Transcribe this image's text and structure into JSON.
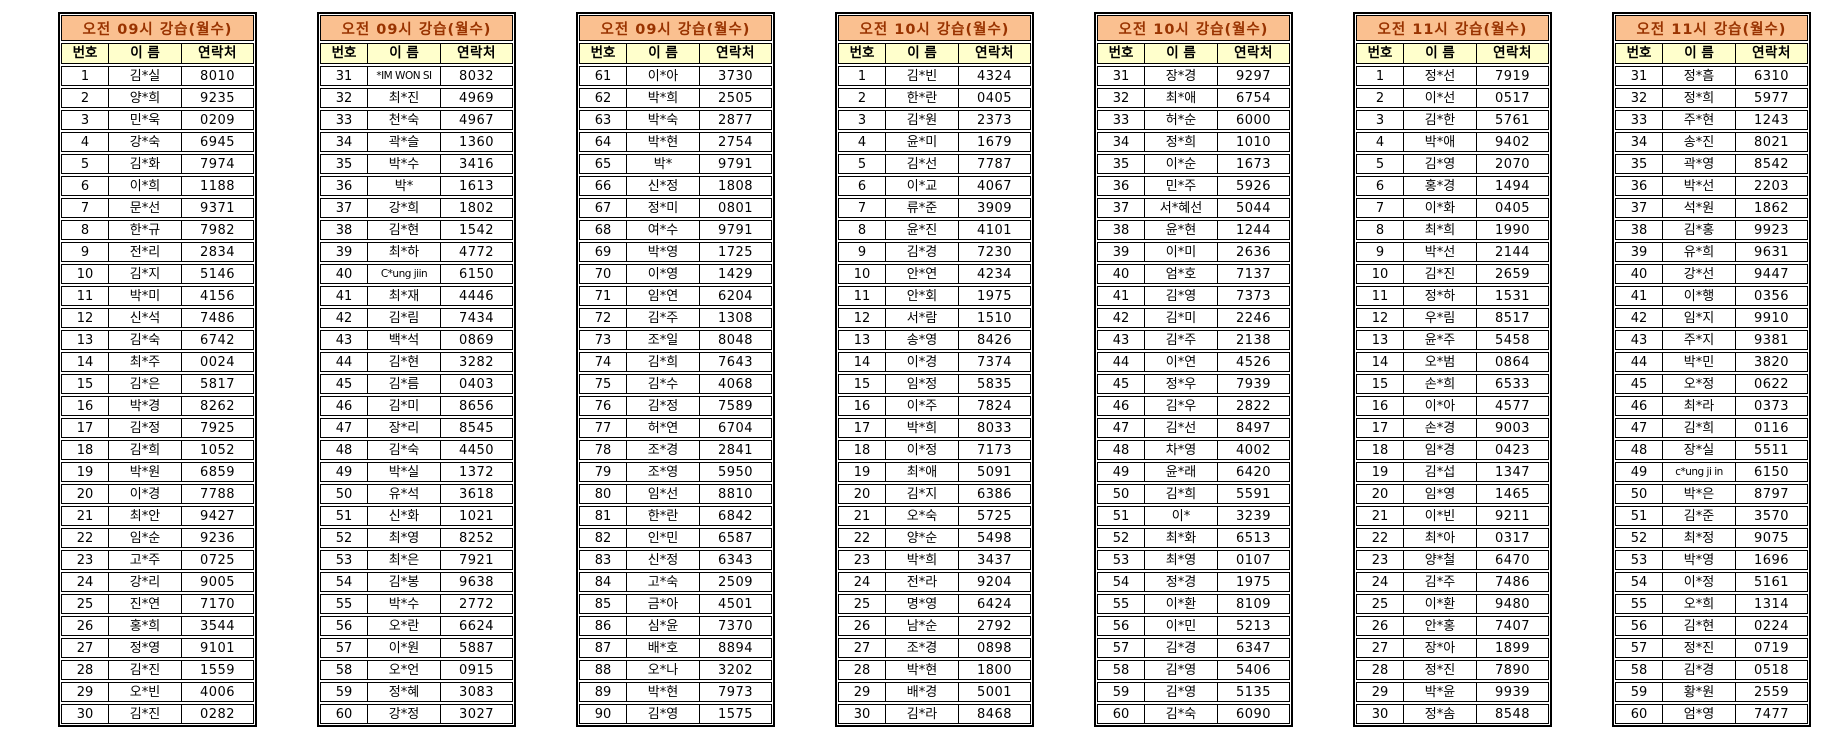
{
  "colors": {
    "title_bg": "#FAC090",
    "title_fg": "#993300",
    "header_bg": "#FFFFCC",
    "border": "#000000",
    "page_bg": "#FFFFFF"
  },
  "columns": [
    "번호",
    "이 름",
    "연락처"
  ],
  "tables": [
    {
      "title": "오전 09시 강습(월수)",
      "rows": [
        [
          "1",
          "김*실",
          "8010"
        ],
        [
          "2",
          "양*희",
          "9235"
        ],
        [
          "3",
          "민*욱",
          "0209"
        ],
        [
          "4",
          "강*숙",
          "6945"
        ],
        [
          "5",
          "김*화",
          "7974"
        ],
        [
          "6",
          "이*희",
          "1188"
        ],
        [
          "7",
          "문*선",
          "9371"
        ],
        [
          "8",
          "한*규",
          "7982"
        ],
        [
          "9",
          "전*리",
          "2834"
        ],
        [
          "10",
          "김*지",
          "5146"
        ],
        [
          "11",
          "박*미",
          "4156"
        ],
        [
          "12",
          "신*석",
          "7486"
        ],
        [
          "13",
          "김*숙",
          "6742"
        ],
        [
          "14",
          "최*주",
          "0024"
        ],
        [
          "15",
          "김*은",
          "5817"
        ],
        [
          "16",
          "박*경",
          "8262"
        ],
        [
          "17",
          "김*정",
          "7925"
        ],
        [
          "18",
          "김*희",
          "1052"
        ],
        [
          "19",
          "박*원",
          "6859"
        ],
        [
          "20",
          "이*경",
          "7788"
        ],
        [
          "21",
          "최*안",
          "9427"
        ],
        [
          "22",
          "임*순",
          "9236"
        ],
        [
          "23",
          "고*주",
          "0725"
        ],
        [
          "24",
          "강*리",
          "9005"
        ],
        [
          "25",
          "진*연",
          "7170"
        ],
        [
          "26",
          "홍*희",
          "3544"
        ],
        [
          "27",
          "정*영",
          "9101"
        ],
        [
          "28",
          "김*진",
          "1559"
        ],
        [
          "29",
          "오*빈",
          "4006"
        ],
        [
          "30",
          "김*진",
          "0282"
        ]
      ]
    },
    {
      "title": "오전 09시 강습(월수)",
      "rows": [
        [
          "31",
          "*IM WON SI",
          "8032"
        ],
        [
          "32",
          "최*진",
          "4969"
        ],
        [
          "33",
          "천*숙",
          "4967"
        ],
        [
          "34",
          "곽*슬",
          "1360"
        ],
        [
          "35",
          "박*수",
          "3416"
        ],
        [
          "36",
          "박*",
          "1613"
        ],
        [
          "37",
          "강*희",
          "1802"
        ],
        [
          "38",
          "김*현",
          "1542"
        ],
        [
          "39",
          "최*하",
          "4772"
        ],
        [
          "40",
          "C*ung jiin",
          "6150"
        ],
        [
          "41",
          "최*재",
          "4446"
        ],
        [
          "42",
          "김*림",
          "7434"
        ],
        [
          "43",
          "백*석",
          "0869"
        ],
        [
          "44",
          "김*현",
          "3282"
        ],
        [
          "45",
          "김*름",
          "0403"
        ],
        [
          "46",
          "김*미",
          "8656"
        ],
        [
          "47",
          "장*리",
          "8545"
        ],
        [
          "48",
          "김*숙",
          "4450"
        ],
        [
          "49",
          "박*실",
          "1372"
        ],
        [
          "50",
          "유*석",
          "3618"
        ],
        [
          "51",
          "신*화",
          "1021"
        ],
        [
          "52",
          "최*영",
          "8252"
        ],
        [
          "53",
          "최*은",
          "7921"
        ],
        [
          "54",
          "김*봉",
          "9638"
        ],
        [
          "55",
          "박*수",
          "2772"
        ],
        [
          "56",
          "오*란",
          "6624"
        ],
        [
          "57",
          "이*원",
          "5887"
        ],
        [
          "58",
          "오*언",
          "0915"
        ],
        [
          "59",
          "정*혜",
          "3083"
        ],
        [
          "60",
          "강*정",
          "3027"
        ]
      ]
    },
    {
      "title": "오전 09시 강습(월수)",
      "rows": [
        [
          "61",
          "이*아",
          "3730"
        ],
        [
          "62",
          "박*희",
          "2505"
        ],
        [
          "63",
          "박*숙",
          "2877"
        ],
        [
          "64",
          "박*현",
          "2754"
        ],
        [
          "65",
          "박*",
          "9791"
        ],
        [
          "66",
          "신*정",
          "1808"
        ],
        [
          "67",
          "정*미",
          "0801"
        ],
        [
          "68",
          "여*수",
          "9791"
        ],
        [
          "69",
          "박*영",
          "1725"
        ],
        [
          "70",
          "이*영",
          "1429"
        ],
        [
          "71",
          "임*연",
          "6204"
        ],
        [
          "72",
          "김*주",
          "1308"
        ],
        [
          "73",
          "조*일",
          "8048"
        ],
        [
          "74",
          "김*희",
          "7643"
        ],
        [
          "75",
          "김*수",
          "4068"
        ],
        [
          "76",
          "김*정",
          "7589"
        ],
        [
          "77",
          "허*연",
          "6704"
        ],
        [
          "78",
          "조*경",
          "2841"
        ],
        [
          "79",
          "조*영",
          "5950"
        ],
        [
          "80",
          "임*선",
          "8810"
        ],
        [
          "81",
          "한*란",
          "6842"
        ],
        [
          "82",
          "인*민",
          "6587"
        ],
        [
          "83",
          "신*정",
          "6343"
        ],
        [
          "84",
          "고*숙",
          "2509"
        ],
        [
          "85",
          "금*아",
          "4501"
        ],
        [
          "86",
          "심*윤",
          "7370"
        ],
        [
          "87",
          "배*호",
          "8894"
        ],
        [
          "88",
          "오*나",
          "3202"
        ],
        [
          "89",
          "박*현",
          "7973"
        ],
        [
          "90",
          "김*영",
          "1575"
        ]
      ]
    },
    {
      "title": "오전 10시 강습(월수)",
      "rows": [
        [
          "1",
          "김*빈",
          "4324"
        ],
        [
          "2",
          "한*란",
          "0405"
        ],
        [
          "3",
          "김*원",
          "2373"
        ],
        [
          "4",
          "윤*미",
          "1679"
        ],
        [
          "5",
          "김*선",
          "7787"
        ],
        [
          "6",
          "이*교",
          "4067"
        ],
        [
          "7",
          "류*준",
          "3909"
        ],
        [
          "8",
          "윤*진",
          "4101"
        ],
        [
          "9",
          "김*경",
          "7230"
        ],
        [
          "10",
          "안*연",
          "4234"
        ],
        [
          "11",
          "안*회",
          "1975"
        ],
        [
          "12",
          "서*람",
          "1510"
        ],
        [
          "13",
          "송*영",
          "8426"
        ],
        [
          "14",
          "이*경",
          "7374"
        ],
        [
          "15",
          "임*정",
          "5835"
        ],
        [
          "16",
          "이*주",
          "7824"
        ],
        [
          "17",
          "박*희",
          "8033"
        ],
        [
          "18",
          "이*정",
          "7173"
        ],
        [
          "19",
          "최*애",
          "5091"
        ],
        [
          "20",
          "김*지",
          "6386"
        ],
        [
          "21",
          "오*숙",
          "5725"
        ],
        [
          "22",
          "양*순",
          "5498"
        ],
        [
          "23",
          "박*희",
          "3437"
        ],
        [
          "24",
          "전*라",
          "9204"
        ],
        [
          "25",
          "명*영",
          "6424"
        ],
        [
          "26",
          "남*순",
          "2792"
        ],
        [
          "27",
          "조*경",
          "0898"
        ],
        [
          "28",
          "박*현",
          "1800"
        ],
        [
          "29",
          "배*경",
          "5001"
        ],
        [
          "30",
          "김*라",
          "8468"
        ]
      ]
    },
    {
      "title": "오전 10시 강습(월수)",
      "rows": [
        [
          "31",
          "장*경",
          "9297"
        ],
        [
          "32",
          "최*애",
          "6754"
        ],
        [
          "33",
          "허*순",
          "6000"
        ],
        [
          "34",
          "정*희",
          "1010"
        ],
        [
          "35",
          "이*순",
          "1673"
        ],
        [
          "36",
          "민*주",
          "5926"
        ],
        [
          "37",
          "서*혜선",
          "5044"
        ],
        [
          "38",
          "윤*현",
          "1244"
        ],
        [
          "39",
          "이*미",
          "2636"
        ],
        [
          "40",
          "엄*호",
          "7137"
        ],
        [
          "41",
          "김*영",
          "7373"
        ],
        [
          "42",
          "김*미",
          "2246"
        ],
        [
          "43",
          "김*주",
          "2138"
        ],
        [
          "44",
          "이*연",
          "4526"
        ],
        [
          "45",
          "정*우",
          "7939"
        ],
        [
          "46",
          "김*우",
          "2822"
        ],
        [
          "47",
          "김*선",
          "8497"
        ],
        [
          "48",
          "차*영",
          "4002"
        ],
        [
          "49",
          "윤*래",
          "6420"
        ],
        [
          "50",
          "김*희",
          "5591"
        ],
        [
          "51",
          "이*",
          "3239"
        ],
        [
          "52",
          "최*화",
          "6513"
        ],
        [
          "53",
          "최*영",
          "0107"
        ],
        [
          "54",
          "정*경",
          "1975"
        ],
        [
          "55",
          "이*환",
          "8109"
        ],
        [
          "56",
          "이*민",
          "5213"
        ],
        [
          "57",
          "김*경",
          "6347"
        ],
        [
          "58",
          "김*영",
          "5406"
        ],
        [
          "59",
          "김*영",
          "5135"
        ],
        [
          "60",
          "김*숙",
          "6090"
        ]
      ]
    },
    {
      "title": "오전 11시 강습(월수)",
      "rows": [
        [
          "1",
          "정*선",
          "7919"
        ],
        [
          "2",
          "이*선",
          "0517"
        ],
        [
          "3",
          "김*한",
          "5761"
        ],
        [
          "4",
          "박*애",
          "9402"
        ],
        [
          "5",
          "김*영",
          "2070"
        ],
        [
          "6",
          "홍*경",
          "1494"
        ],
        [
          "7",
          "이*화",
          "0405"
        ],
        [
          "8",
          "최*희",
          "1990"
        ],
        [
          "9",
          "박*선",
          "2144"
        ],
        [
          "10",
          "김*진",
          "2659"
        ],
        [
          "11",
          "정*하",
          "1531"
        ],
        [
          "12",
          "우*림",
          "8517"
        ],
        [
          "13",
          "윤*주",
          "5458"
        ],
        [
          "14",
          "오*범",
          "0864"
        ],
        [
          "15",
          "손*희",
          "6533"
        ],
        [
          "16",
          "이*아",
          "4577"
        ],
        [
          "17",
          "손*경",
          "9003"
        ],
        [
          "18",
          "임*경",
          "0423"
        ],
        [
          "19",
          "김*섭",
          "1347"
        ],
        [
          "20",
          "임*영",
          "1465"
        ],
        [
          "21",
          "이*빈",
          "9211"
        ],
        [
          "22",
          "최*아",
          "0317"
        ],
        [
          "23",
          "양*철",
          "6470"
        ],
        [
          "24",
          "김*주",
          "7486"
        ],
        [
          "25",
          "이*환",
          "9480"
        ],
        [
          "26",
          "안*홍",
          "7407"
        ],
        [
          "27",
          "장*아",
          "1899"
        ],
        [
          "28",
          "정*진",
          "7890"
        ],
        [
          "29",
          "박*윤",
          "9939"
        ],
        [
          "30",
          "정*솜",
          "8548"
        ]
      ]
    },
    {
      "title": "오전 11시 강습(월수)",
      "rows": [
        [
          "31",
          "정*흠",
          "6310"
        ],
        [
          "32",
          "정*희",
          "5977"
        ],
        [
          "33",
          "주*현",
          "1243"
        ],
        [
          "34",
          "송*진",
          "8021"
        ],
        [
          "35",
          "곽*영",
          "8542"
        ],
        [
          "36",
          "박*선",
          "2203"
        ],
        [
          "37",
          "석*원",
          "1862"
        ],
        [
          "38",
          "김*홍",
          "9923"
        ],
        [
          "39",
          "유*희",
          "9631"
        ],
        [
          "40",
          "강*선",
          "9447"
        ],
        [
          "41",
          "이*행",
          "0356"
        ],
        [
          "42",
          "임*지",
          "9910"
        ],
        [
          "43",
          "주*지",
          "9381"
        ],
        [
          "44",
          "박*민",
          "3820"
        ],
        [
          "45",
          "오*정",
          "0622"
        ],
        [
          "46",
          "최*라",
          "0373"
        ],
        [
          "47",
          "김*희",
          "0116"
        ],
        [
          "48",
          "장*실",
          "5511"
        ],
        [
          "49",
          "c*ung ji in",
          "6150"
        ],
        [
          "50",
          "박*은",
          "8797"
        ],
        [
          "51",
          "김*준",
          "3570"
        ],
        [
          "52",
          "최*정",
          "9075"
        ],
        [
          "53",
          "박*영",
          "1696"
        ],
        [
          "54",
          "이*정",
          "5161"
        ],
        [
          "55",
          "오*희",
          "1314"
        ],
        [
          "56",
          "김*현",
          "0224"
        ],
        [
          "57",
          "정*진",
          "0719"
        ],
        [
          "58",
          "김*경",
          "0518"
        ],
        [
          "59",
          "황*원",
          "2559"
        ],
        [
          "60",
          "엄*영",
          "7477"
        ]
      ]
    }
  ]
}
